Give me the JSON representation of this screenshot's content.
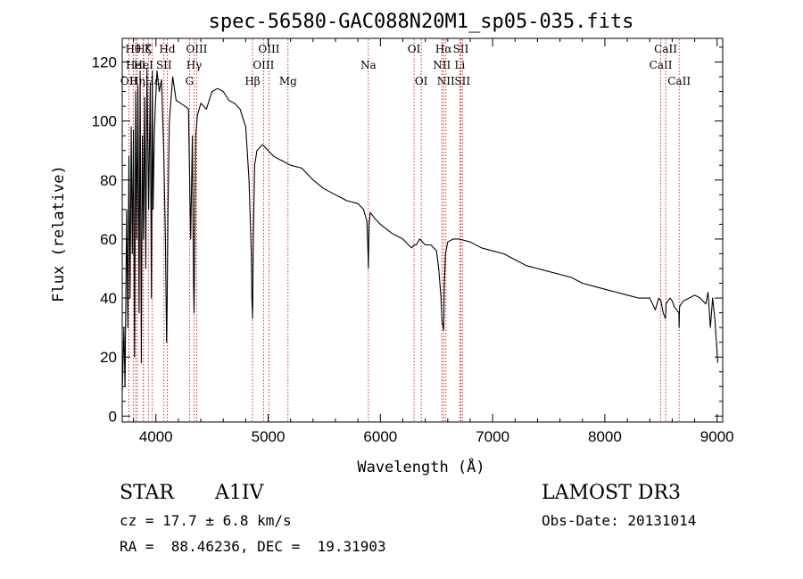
{
  "chart_data": {
    "type": "line",
    "title": "spec-56580-GAC088N20M1_sp05-035.fits",
    "xlabel": "Wavelength (Å)",
    "ylabel": "Flux (relative)",
    "xlim": [
      3700,
      9050
    ],
    "ylim": [
      -2,
      128
    ],
    "xticks": [
      4000,
      5000,
      6000,
      7000,
      8000,
      9000
    ],
    "yticks": [
      0,
      20,
      40,
      60,
      80,
      100,
      120
    ],
    "spectrum": {
      "name": "Flux",
      "x": [
        3700,
        3715,
        3725,
        3740,
        3750,
        3760,
        3770,
        3780,
        3790,
        3800,
        3810,
        3820,
        3830,
        3840,
        3850,
        3860,
        3870,
        3880,
        3889,
        3900,
        3910,
        3920,
        3935,
        3950,
        3960,
        3968,
        3975,
        3985,
        3995,
        4010,
        4030,
        4050,
        4070,
        4085,
        4095,
        4101,
        4108,
        4120,
        4150,
        4180,
        4220,
        4260,
        4290,
        4310,
        4325,
        4335,
        4340,
        4345,
        4355,
        4370,
        4400,
        4450,
        4500,
        4550,
        4600,
        4650,
        4700,
        4750,
        4800,
        4830,
        4850,
        4855,
        4860,
        4861,
        4863,
        4868,
        4880,
        4900,
        4950,
        5000,
        5050,
        5100,
        5150,
        5200,
        5300,
        5400,
        5500,
        5600,
        5700,
        5800,
        5850,
        5880,
        5890,
        5893,
        5896,
        5900,
        5910,
        5950,
        6000,
        6100,
        6200,
        6250,
        6280,
        6300,
        6320,
        6350,
        6400,
        6450,
        6500,
        6520,
        6540,
        6550,
        6560,
        6563,
        6566,
        6570,
        6580,
        6600,
        6650,
        6700,
        6800,
        6900,
        7000,
        7100,
        7200,
        7300,
        7400,
        7500,
        7600,
        7700,
        7800,
        7900,
        8000,
        8100,
        8200,
        8300,
        8400,
        8450,
        8480,
        8500,
        8520,
        8540,
        8542,
        8545,
        8560,
        8580,
        8600,
        8620,
        8640,
        8660,
        8662,
        8665,
        8680,
        8700,
        8750,
        8800,
        8850,
        8900,
        8920,
        8940,
        8960,
        8980,
        8990,
        9000,
        9005
      ],
      "y": [
        8,
        30,
        10,
        70,
        30,
        88,
        40,
        98,
        55,
        97,
        20,
        110,
        60,
        112,
        35,
        117,
        18,
        95,
        60,
        108,
        50,
        118,
        70,
        113,
        40,
        117,
        70,
        95,
        105,
        117,
        110,
        114,
        90,
        60,
        25,
        40,
        70,
        100,
        115,
        107,
        106,
        105,
        104,
        60,
        95,
        45,
        35,
        50,
        95,
        102,
        106,
        104,
        110,
        111,
        110,
        107,
        106,
        104,
        98,
        80,
        55,
        40,
        35,
        33,
        38,
        60,
        85,
        90,
        92,
        90,
        88,
        87,
        86,
        85,
        84,
        80,
        77,
        75,
        73,
        72,
        70,
        66,
        55,
        50,
        56,
        65,
        69,
        67,
        65,
        62,
        60,
        58,
        57,
        58,
        58,
        60,
        58,
        58,
        56,
        50,
        40,
        32,
        30,
        29,
        33,
        45,
        55,
        59,
        60,
        60,
        59,
        57,
        56,
        55,
        53,
        51,
        50,
        49,
        48,
        47,
        45,
        44,
        43,
        42,
        41,
        40,
        40,
        36,
        40,
        39,
        35,
        33,
        34,
        38,
        39,
        40,
        39,
        37,
        36,
        35,
        30,
        37,
        38,
        39,
        40,
        41,
        40,
        38,
        42,
        30,
        40,
        33,
        27,
        22,
        18
      ]
    },
    "spectral_lines": [
      {
        "x": 3760,
        "label": "OII",
        "tier": 2
      },
      {
        "x": 3798,
        "label": "Hθ",
        "tier": 0
      },
      {
        "x": 3820,
        "label": "HeI",
        "tier": 1
      },
      {
        "x": 3835,
        "label": "Hη",
        "tier": 2
      },
      {
        "x": 3889,
        "label": "Hζ",
        "tier": 0
      },
      {
        "x": 3889,
        "label": "HeI",
        "tier": 1
      },
      {
        "x": 3933,
        "label": "K",
        "tier": 0
      },
      {
        "x": 3968,
        "label": "Hε",
        "tier": 2
      },
      {
        "x": 4072,
        "label": "SII",
        "tier": 1
      },
      {
        "x": 4101,
        "label": "Hd",
        "tier": 0
      },
      {
        "x": 4300,
        "label": "G",
        "tier": 2
      },
      {
        "x": 4340,
        "label": "Hγ",
        "tier": 1
      },
      {
        "x": 4363,
        "label": "OIII",
        "tier": 0
      },
      {
        "x": 4861,
        "label": "Hβ",
        "tier": 2
      },
      {
        "x": 4959,
        "label": "OIII",
        "tier": 1
      },
      {
        "x": 5007,
        "label": "OIII",
        "tier": 0
      },
      {
        "x": 5177,
        "label": "Mg",
        "tier": 2
      },
      {
        "x": 5893,
        "label": "Na",
        "tier": 1
      },
      {
        "x": 6300,
        "label": "OI",
        "tier": 0
      },
      {
        "x": 6364,
        "label": "OI",
        "tier": 2
      },
      {
        "x": 6548,
        "label": "NII",
        "tier": 1
      },
      {
        "x": 6563,
        "label": "Hα",
        "tier": 0
      },
      {
        "x": 6584,
        "label": "NII",
        "tier": 2
      },
      {
        "x": 6707,
        "label": "Li",
        "tier": 1
      },
      {
        "x": 6717,
        "label": "SII",
        "tier": 0
      },
      {
        "x": 6731,
        "label": "SII",
        "tier": 2
      },
      {
        "x": 8498,
        "label": "CaII",
        "tier": 1
      },
      {
        "x": 8542,
        "label": "CaII",
        "tier": 0
      },
      {
        "x": 8662,
        "label": "CaII",
        "tier": 2
      }
    ],
    "line_color": "#000000",
    "marker_color": "#cc0000"
  },
  "info": {
    "object_class": "STAR",
    "subclass": "A1IV",
    "survey": "LAMOST DR3",
    "redshift": "cz = 17.7 ± 6.8 km/s",
    "obs_date": "Obs-Date: 20131014",
    "coords": "RA =  88.46236, DEC =  19.31903"
  }
}
